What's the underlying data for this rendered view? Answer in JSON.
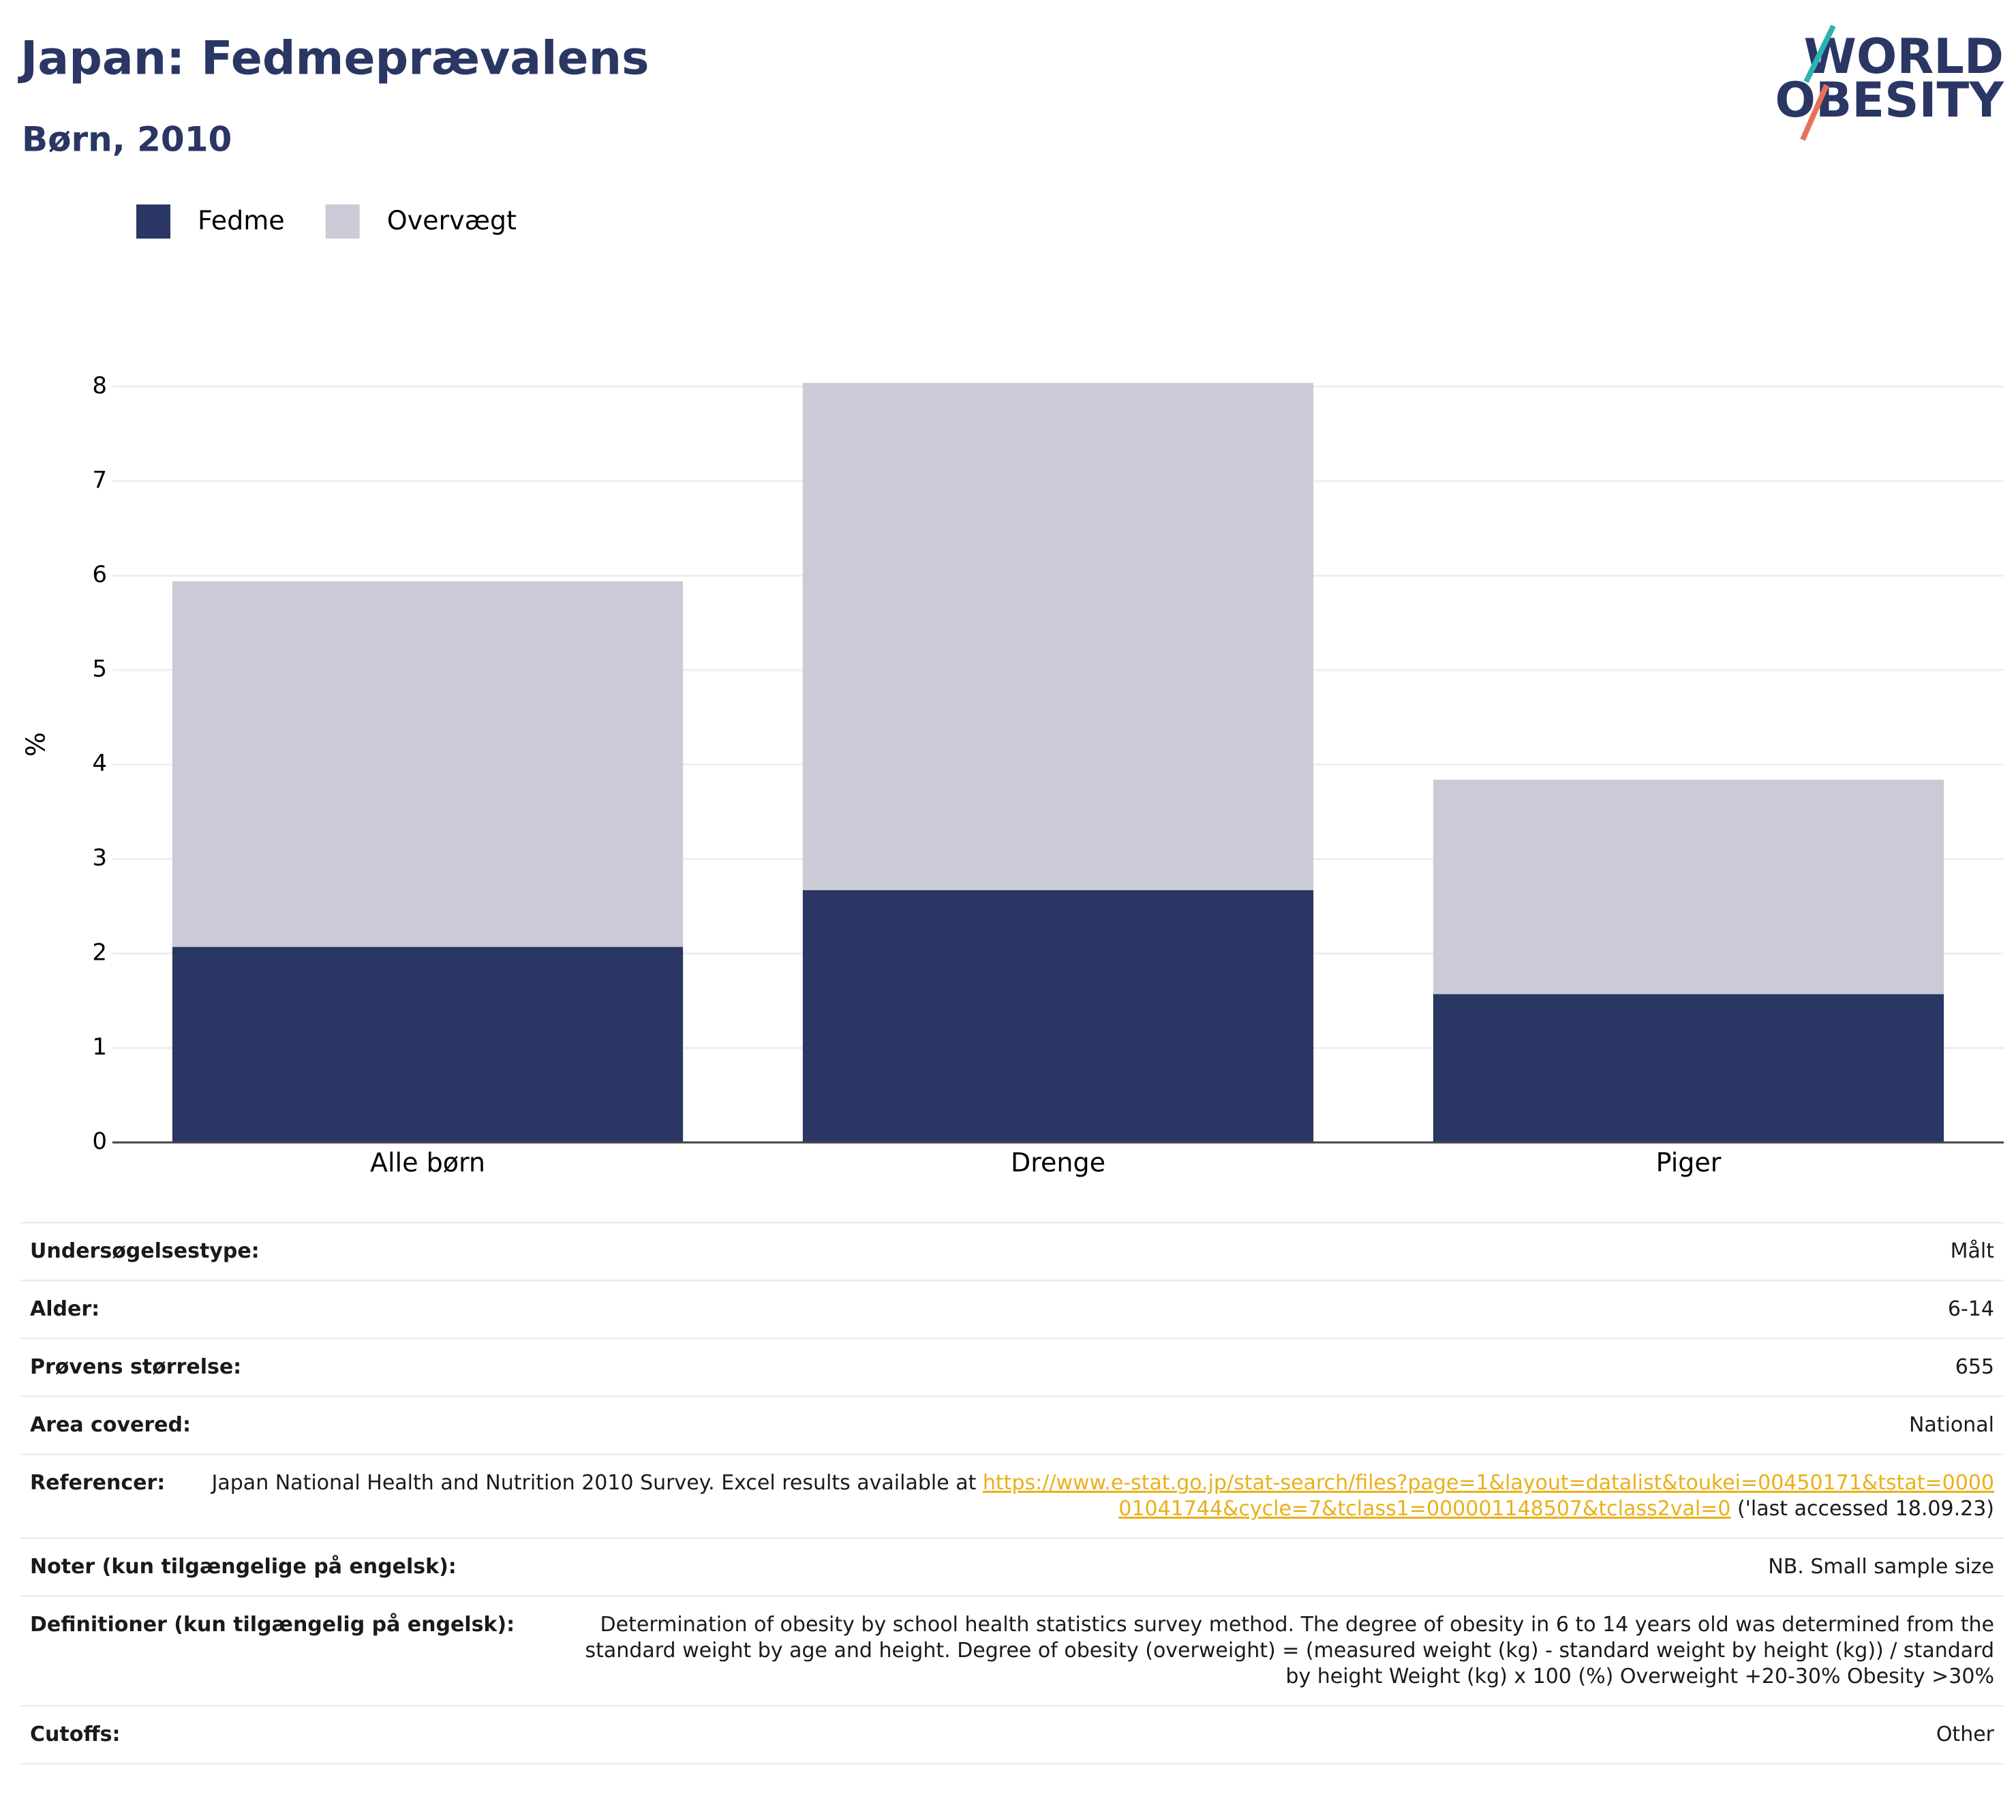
{
  "logo": {
    "line1": "WORLD",
    "line2": "OBESITY"
  },
  "chart_data": {
    "type": "stacked_bar",
    "title": "Japan: Fedmeprævalens",
    "subtitle": "Børn, 2010",
    "y_label": "%",
    "categories": [
      "Alle børn",
      "Drenge",
      "Piger"
    ],
    "series": [
      {
        "name": "Fedme",
        "color": "#2a3663",
        "values": [
          2.07,
          2.67,
          1.57
        ]
      },
      {
        "name": "Overvægt",
        "color": "#cacbd6",
        "values": [
          3.87,
          5.37,
          2.27
        ]
      }
    ],
    "ylim": [
      0,
      8.5
    ],
    "yticks": [
      0,
      1,
      2,
      3,
      4,
      5,
      6,
      7,
      8
    ],
    "grid": true
  },
  "table": {
    "rows": [
      {
        "label": "Undersøgelsestype:",
        "value": "Målt"
      },
      {
        "label": "Alder:",
        "value": "6-14"
      },
      {
        "label": "Prøvens størrelse:",
        "value": "655"
      },
      {
        "label": "Area covered:",
        "value": "National"
      },
      {
        "label": "Referencer:",
        "value": "Japan National Health and Nutrition 2010 Survey. Excel results available at ",
        "link": "https://www.e-stat.go.jp/stat-search/files?page=1&layout=datalist&toukei=00450171&tstat=000001041744&cycle=7&tclass1=000001148507&tclass2val=0",
        "value_after": " ('last accessed 18.09.23)"
      },
      {
        "label": "Noter (kun tilgængelige på engelsk):",
        "value": "NB. Small sample size"
      },
      {
        "label": "Definitioner (kun tilgængelig på engelsk):",
        "value": "Determination of obesity by school health statistics survey method. The degree of obesity in 6 to 14 years old was determined from the standard weight by age and height. Degree of obesity (overweight) = (measured weight (kg) - standard weight by height (kg)) / standard by height Weight (kg) x 100 (%) Overweight +20-30% Obesity >30%"
      },
      {
        "label": "Cutoffs:",
        "value": "Other"
      }
    ]
  }
}
